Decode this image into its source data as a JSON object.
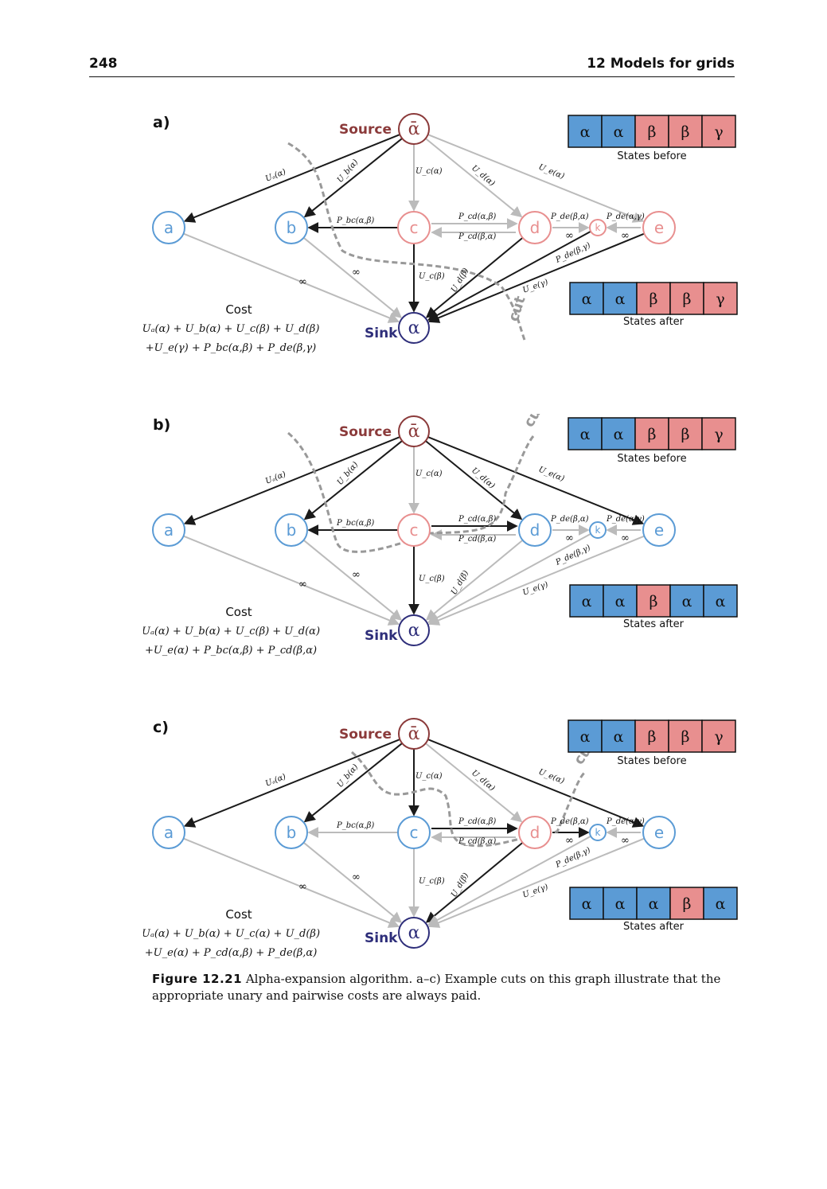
{
  "header": {
    "page_number": "248",
    "chapter_title": "12 Models for grids"
  },
  "colors": {
    "alpha": "#5b9bd5",
    "beta": "#e88f8f",
    "source": "#8b3a3a",
    "sink": "#2e2e7a",
    "edge_dark": "#1a1a1a",
    "edge_light": "#bbbbbb",
    "cut": "#999999"
  },
  "common": {
    "source_label": "Source",
    "sink_label": "Sink",
    "source_symbol": "ᾱ",
    "sink_symbol": "α",
    "states_before_label": "States before",
    "states_after_label": "States after",
    "cost_label": "Cost",
    "cut_label": "cut",
    "infinity": "∞"
  },
  "panels": [
    {
      "id": "a",
      "panel_label": "a)",
      "node_labels": {
        "a": "a",
        "b": "b",
        "c": "c",
        "d": "d",
        "k": "k",
        "e": "e"
      },
      "node_states": {
        "a": "alpha",
        "b": "alpha",
        "c": "beta",
        "d": "beta",
        "k": "beta",
        "e": "beta"
      },
      "edge_labels": {
        "Ua": "Uₐ(α)",
        "Ub": "U_b(α)",
        "Uc_src": "U_c(α)",
        "Ud_src": "U_d(α)",
        "Ue_src": "U_e(α)",
        "Pbc": "P_bc(α,β)",
        "Pcd_top": "P_cd(α,β)",
        "Pcd_bot": "P_cd(β,α)",
        "Pdk": "P_de(β,α)",
        "Pke": "P_de(α,γ)",
        "Pke_diag": "P_de(β,γ)",
        "Uc_sink": "U_c(β)",
        "Ud_sink": "U_d(β)",
        "Ue_sink": "U_e(γ)"
      },
      "states_before": [
        "α",
        "α",
        "β",
        "β",
        "γ"
      ],
      "states_after": [
        "α",
        "α",
        "β",
        "β",
        "γ"
      ],
      "cost_line1": "Uₐ(α) + U_b(α) + U_c(β) + U_d(β)",
      "cost_line2": "+U_e(γ) + P_bc(α,β) + P_de(β,γ)"
    },
    {
      "id": "b",
      "panel_label": "b)",
      "node_labels": {
        "a": "a",
        "b": "b",
        "c": "c",
        "d": "d",
        "k": "k",
        "e": "e"
      },
      "node_states": {
        "a": "alpha",
        "b": "alpha",
        "c": "beta",
        "d": "alpha",
        "k": "alpha",
        "e": "alpha"
      },
      "edge_labels": {
        "Ua": "Uₐ(α)",
        "Ub": "U_b(α)",
        "Uc_src": "U_c(α)",
        "Ud_src": "U_d(α)",
        "Ue_src": "U_e(α)",
        "Pbc": "P_bc(α,β)",
        "Pcd_top": "P_cd(α,β)",
        "Pcd_bot": "P_cd(β,α)",
        "Pdk": "P_de(β,α)",
        "Pke": "P_de(α,γ)",
        "Pke_diag": "P_de(β,γ)",
        "Uc_sink": "U_c(β)",
        "Ud_sink": "U_d(β)",
        "Ue_sink": "U_e(γ)"
      },
      "states_before": [
        "α",
        "α",
        "β",
        "β",
        "γ"
      ],
      "states_after": [
        "α",
        "α",
        "β",
        "α",
        "α"
      ],
      "cost_line1": "Uₐ(α) + U_b(α) + U_c(β) + U_d(α)",
      "cost_line2": "+U_e(α) + P_bc(α,β) + P_cd(β,α)"
    },
    {
      "id": "c",
      "panel_label": "c)",
      "node_labels": {
        "a": "a",
        "b": "b",
        "c": "c",
        "d": "d",
        "k": "k",
        "e": "e"
      },
      "node_states": {
        "a": "alpha",
        "b": "alpha",
        "c": "alpha",
        "d": "beta",
        "k": "alpha",
        "e": "alpha"
      },
      "edge_labels": {
        "Ua": "Uₐ(α)",
        "Ub": "U_b(α)",
        "Uc_src": "U_c(α)",
        "Ud_src": "U_d(α)",
        "Ue_src": "U_e(α)",
        "Pbc": "P_bc(α,β)",
        "Pcd_top": "P_cd(α,β)",
        "Pcd_bot": "P_cd(β,α)",
        "Pdk": "P_de(β,α)",
        "Pke": "P_de(α,γ)",
        "Pke_diag": "P_de(β,γ)",
        "Uc_sink": "U_c(β)",
        "Ud_sink": "U_d(β)",
        "Ue_sink": "U_e(γ)"
      },
      "states_before": [
        "α",
        "α",
        "β",
        "β",
        "γ"
      ],
      "states_after": [
        "α",
        "α",
        "α",
        "β",
        "α"
      ],
      "cost_line1": "Uₐ(α) + U_b(α) + U_c(α) + U_d(β)",
      "cost_line2": "+U_e(α) + P_cd(α,β) + P_de(β,α)"
    }
  ],
  "caption": {
    "figure_label": "Figure 12.21",
    "text": "Alpha-expansion algorithm. a–c) Example cuts on this graph illustrate that the appropriate unary and pairwise costs are always paid."
  }
}
